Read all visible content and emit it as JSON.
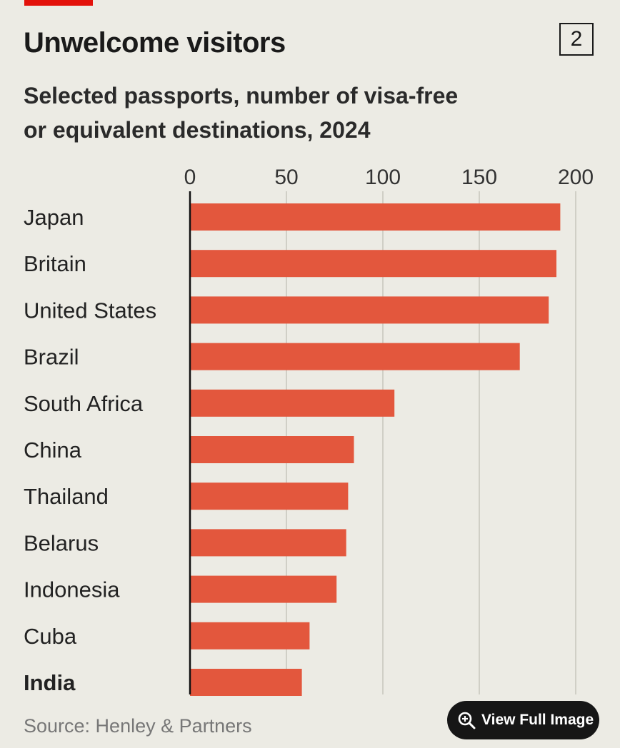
{
  "header": {
    "title": "Unwelcome visitors",
    "chart_number": "2",
    "subtitle_line1": "Selected passports, number of visa-free",
    "subtitle_line2": "or equivalent destinations, 2024"
  },
  "colors": {
    "background": "#ecebe4",
    "bar": "#e3573d",
    "accent_tag": "#e3120b",
    "gridline": "#d0cfc6",
    "text": "#1a1a1a"
  },
  "chart_data": {
    "type": "bar",
    "orientation": "horizontal",
    "title": "Unwelcome visitors",
    "subtitle": "Selected passports, number of visa-free or equivalent destinations, 2024",
    "categories": [
      "Japan",
      "Britain",
      "United States",
      "Brazil",
      "South Africa",
      "China",
      "Thailand",
      "Belarus",
      "Indonesia",
      "Cuba",
      "India"
    ],
    "values": [
      192,
      190,
      186,
      171,
      106,
      85,
      82,
      81,
      76,
      62,
      58
    ],
    "highlighted_category": "India",
    "x_ticks": [
      "0",
      "50",
      "100",
      "150",
      "200"
    ],
    "xlim": [
      0,
      200
    ],
    "xlabel": "",
    "ylabel": "",
    "grid": true,
    "tick_position": "top",
    "legend": false
  },
  "footer": {
    "source": "Source: Henley & Partners",
    "view_full_image_label": "View Full Image",
    "view_full_image_icon": "zoom-in-icon"
  }
}
